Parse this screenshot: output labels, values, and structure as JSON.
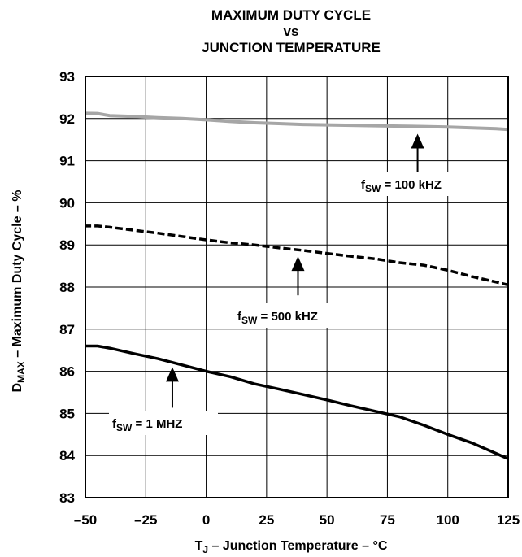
{
  "chart_data": {
    "type": "line",
    "title_lines": [
      "MAXIMUM DUTY CYCLE",
      "vs",
      "JUNCTION TEMPERATURE"
    ],
    "xlabel": {
      "main": "T",
      "sub": "J",
      "rest": " – Junction Temperature – °C"
    },
    "ylabel": {
      "main": "D",
      "sub": "MAX",
      "rest": " – Maximum Duty Cycle – %"
    },
    "xlim": [
      -50,
      125
    ],
    "ylim": [
      83,
      93
    ],
    "xticks": [
      -50,
      -25,
      0,
      25,
      50,
      75,
      100,
      125
    ],
    "yticks": [
      83,
      84,
      85,
      86,
      87,
      88,
      89,
      90,
      91,
      92,
      93
    ],
    "xtick_labels": [
      "–50",
      "–25",
      "0",
      "25",
      "50",
      "75",
      "100",
      "125"
    ],
    "ytick_labels": [
      "83",
      "84",
      "85",
      "86",
      "87",
      "88",
      "89",
      "90",
      "91",
      "92",
      "93"
    ],
    "grid": true,
    "series": [
      {
        "key": "s100k",
        "label": {
          "main": "f",
          "sub": "SW",
          "rest": " = 100 kHZ"
        },
        "color": "#a6a6a6",
        "style": "solid",
        "x": [
          -55,
          -45,
          -40,
          -30,
          -20,
          -10,
          0,
          10,
          20,
          30,
          40,
          50,
          60,
          70,
          80,
          90,
          100,
          110,
          120,
          125
        ],
        "y": [
          92.13,
          92.12,
          92.07,
          92.05,
          92.02,
          92.0,
          91.97,
          91.93,
          91.9,
          91.88,
          91.86,
          91.85,
          91.84,
          91.83,
          91.82,
          91.81,
          91.8,
          91.78,
          91.76,
          91.74
        ]
      },
      {
        "key": "s500k",
        "label": {
          "main": "f",
          "sub": "SW",
          "rest": " = 500 kHZ"
        },
        "color": "#000000",
        "style": "dashed",
        "x": [
          -55,
          -45,
          -40,
          -30,
          -20,
          -10,
          0,
          10,
          20,
          30,
          40,
          50,
          60,
          70,
          80,
          90,
          100,
          110,
          120,
          125
        ],
        "y": [
          89.45,
          89.45,
          89.42,
          89.35,
          89.28,
          89.2,
          89.12,
          89.05,
          89.0,
          88.93,
          88.87,
          88.8,
          88.73,
          88.67,
          88.58,
          88.52,
          88.4,
          88.25,
          88.12,
          88.05
        ]
      },
      {
        "key": "s1m",
        "label": {
          "main": "f",
          "sub": "SW",
          "rest": " = 1 MHZ"
        },
        "color": "#000000",
        "style": "solid",
        "x": [
          -55,
          -50,
          -45,
          -40,
          -30,
          -20,
          -10,
          0,
          10,
          20,
          30,
          40,
          50,
          60,
          70,
          80,
          90,
          100,
          110,
          120,
          125
        ],
        "y": [
          86.55,
          86.6,
          86.6,
          86.55,
          86.42,
          86.3,
          86.15,
          86.0,
          85.87,
          85.7,
          85.58,
          85.45,
          85.32,
          85.18,
          85.05,
          84.92,
          84.72,
          84.5,
          84.3,
          84.05,
          83.92
        ]
      }
    ]
  }
}
